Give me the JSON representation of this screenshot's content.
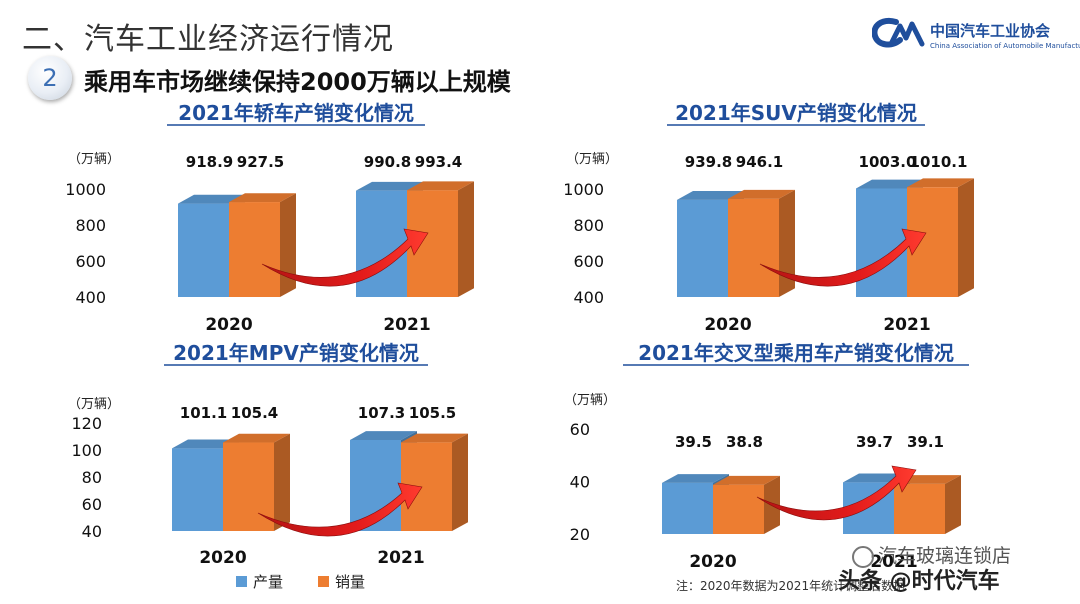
{
  "slide": {
    "title": "二、汽车工业经济运行情况",
    "section_number": "2",
    "section_heading": "乘用车市场继续保持2000万辆以上规模"
  },
  "logo": {
    "name_cn": "中国汽车工业协会",
    "name_en": "China Association of Automobile Manufacturers",
    "mark": "CM"
  },
  "legend": {
    "items": [
      {
        "label": "产量",
        "color": "#5b9bd5"
      },
      {
        "label": "销量",
        "color": "#ed7d31"
      }
    ]
  },
  "note": "注：2020年数据为2021年统计调整后数据",
  "watermark": {
    "line1": "汽车玻璃连锁店",
    "line2": "头条 @时代汽车"
  },
  "chart_data": [
    {
      "type": "bar",
      "title": "2021年轿车产销变化情况",
      "ylabel": "（万辆）",
      "categories": [
        "2020",
        "2021"
      ],
      "series": [
        {
          "name": "产量",
          "values": [
            918.9,
            990.8
          ]
        },
        {
          "name": "销量",
          "values": [
            927.5,
            993.4
          ]
        }
      ],
      "value_labels": [
        "918.9",
        "927.5",
        "990.8",
        "993.4"
      ],
      "yticks": [
        "400",
        "600",
        "800",
        "1000"
      ],
      "ylim": [
        400,
        1100
      ],
      "legend": "bottom"
    },
    {
      "type": "bar",
      "title": "2021年SUV产销变化情况",
      "ylabel": "（万辆）",
      "categories": [
        "2020",
        "2021"
      ],
      "series": [
        {
          "name": "产量",
          "values": [
            939.8,
            1003.0
          ]
        },
        {
          "name": "销量",
          "values": [
            946.1,
            1010.1
          ]
        }
      ],
      "value_labels": [
        "939.8",
        "946.1",
        "1003.0",
        "1010.1"
      ],
      "yticks": [
        "400",
        "600",
        "800",
        "1000"
      ],
      "ylim": [
        400,
        1100
      ],
      "legend": "bottom"
    },
    {
      "type": "bar",
      "title": "2021年MPV产销变化情况",
      "ylabel": "（万辆）",
      "categories": [
        "2020",
        "2021"
      ],
      "series": [
        {
          "name": "产量",
          "values": [
            101.1,
            107.3
          ]
        },
        {
          "name": "销量",
          "values": [
            105.4,
            105.5
          ]
        }
      ],
      "value_labels": [
        "101.1",
        "105.4",
        "107.3",
        "105.5"
      ],
      "yticks": [
        "40",
        "60",
        "80",
        "100",
        "120"
      ],
      "ylim": [
        40,
        125
      ],
      "legend": "bottom"
    },
    {
      "type": "bar",
      "title": "2021年交叉型乘用车产销变化情况",
      "ylabel": "（万辆）",
      "categories": [
        "2020",
        "2021"
      ],
      "series": [
        {
          "name": "产量",
          "values": [
            39.5,
            39.7
          ]
        },
        {
          "name": "销量",
          "values": [
            38.8,
            39.1
          ]
        }
      ],
      "value_labels": [
        "39.5",
        "38.8",
        "39.7",
        "39.1"
      ],
      "yticks": [
        "20",
        "40",
        "60"
      ],
      "ylim": [
        20,
        65
      ],
      "legend": "bottom"
    }
  ]
}
